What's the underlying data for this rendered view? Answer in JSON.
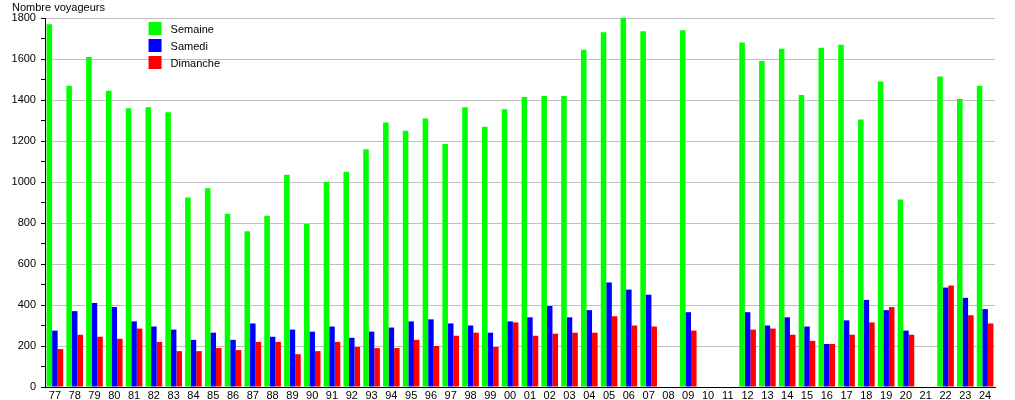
{
  "chart_data": {
    "type": "bar",
    "ylabel": "Nombre voyageurs",
    "categories": [
      "77",
      "78",
      "79",
      "80",
      "81",
      "82",
      "83",
      "84",
      "85",
      "86",
      "87",
      "88",
      "89",
      "90",
      "91",
      "92",
      "93",
      "94",
      "95",
      "96",
      "97",
      "98",
      "99",
      "00",
      "01",
      "02",
      "03",
      "04",
      "05",
      "06",
      "07",
      "08",
      "09",
      "10",
      "11",
      "12",
      "13",
      "14",
      "15",
      "16",
      "17",
      "18",
      "19",
      "20",
      "21",
      "22",
      "23",
      "24"
    ],
    "series": [
      {
        "name": "Semaine",
        "color": "#00ff00",
        "values": [
          1770,
          1470,
          1610,
          1445,
          1360,
          1365,
          1340,
          925,
          970,
          845,
          760,
          835,
          1035,
          795,
          1000,
          1050,
          1160,
          1290,
          1250,
          1310,
          1185,
          1365,
          1270,
          1355,
          1415,
          1420,
          1420,
          1645,
          1730,
          1800,
          1735,
          null,
          1740,
          null,
          null,
          1680,
          1590,
          1650,
          1425,
          1655,
          1670,
          1305,
          1490,
          915,
          null,
          1515,
          1405,
          1470
        ]
      },
      {
        "name": "Samedi",
        "color": "#0000ff",
        "values": [
          275,
          370,
          410,
          390,
          320,
          295,
          280,
          230,
          265,
          230,
          310,
          245,
          280,
          270,
          295,
          240,
          270,
          290,
          320,
          330,
          310,
          300,
          265,
          320,
          340,
          395,
          340,
          375,
          510,
          475,
          450,
          null,
          365,
          null,
          null,
          365,
          300,
          340,
          295,
          210,
          325,
          425,
          375,
          275,
          null,
          485,
          435,
          380
        ]
      },
      {
        "name": "Dimanche",
        "color": "#ff0000",
        "values": [
          185,
          255,
          245,
          235,
          285,
          220,
          175,
          175,
          190,
          180,
          220,
          220,
          160,
          175,
          220,
          195,
          190,
          190,
          230,
          200,
          250,
          265,
          195,
          315,
          250,
          260,
          265,
          265,
          345,
          300,
          295,
          null,
          275,
          null,
          null,
          280,
          285,
          255,
          225,
          210,
          255,
          315,
          390,
          255,
          null,
          495,
          350,
          310
        ]
      }
    ],
    "ylim": [
      0,
      1800
    ],
    "yticks": [
      0,
      {
        "value": 100,
        "label": null
      },
      200,
      {
        "value": 300,
        "label": null
      },
      400,
      {
        "value": 500,
        "label": null
      },
      600,
      {
        "value": 700,
        "label": null
      },
      800,
      {
        "value": 900,
        "label": null
      },
      1000,
      {
        "value": 1100,
        "label": null
      },
      1200,
      {
        "value": 1300,
        "label": null
      },
      1400,
      {
        "value": 1500,
        "label": null
      },
      1600,
      {
        "value": 1700,
        "label": null
      },
      1800
    ],
    "grid": "y",
    "legend": "top left"
  }
}
